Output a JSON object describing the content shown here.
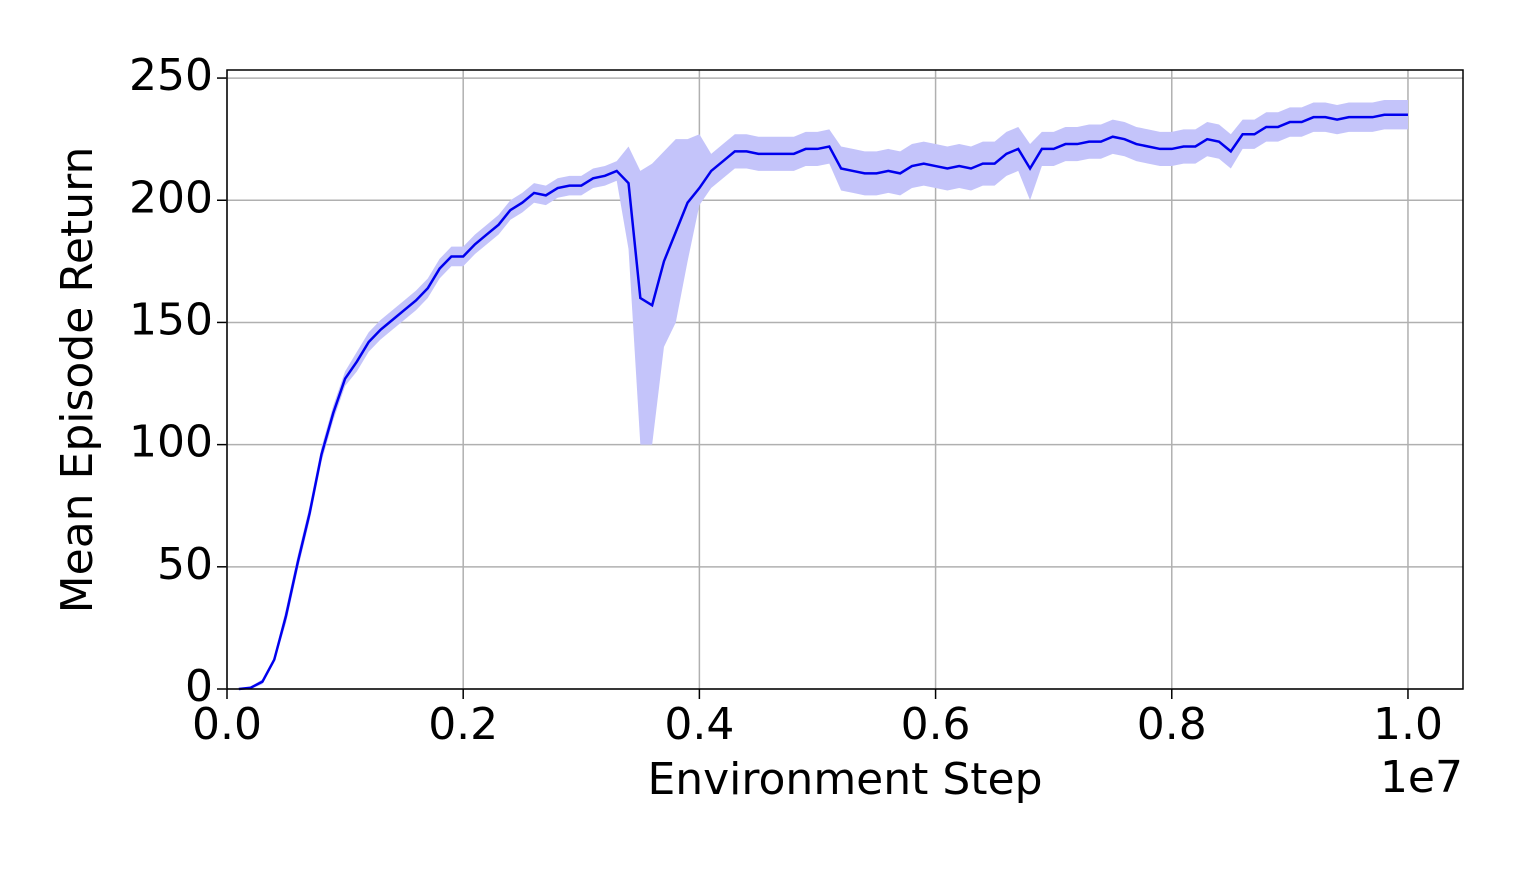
{
  "chart_data": {
    "type": "line",
    "xlabel": "Environment Step",
    "ylabel": "Mean Episode Return",
    "x_offset_label": "1e7",
    "xlim": [
      0,
      10466000
    ],
    "ylim": [
      0,
      253.3
    ],
    "xticks": [
      {
        "value": 0,
        "label": "0.0"
      },
      {
        "value": 2000000,
        "label": "0.2"
      },
      {
        "value": 4000000,
        "label": "0.4"
      },
      {
        "value": 6000000,
        "label": "0.6"
      },
      {
        "value": 8000000,
        "label": "0.8"
      },
      {
        "value": 10000000,
        "label": "1.0"
      }
    ],
    "yticks": [
      0,
      50,
      100,
      150,
      200,
      250
    ],
    "grid": true,
    "x": [
      100000,
      200000,
      300000,
      400000,
      500000,
      600000,
      700000,
      800000,
      900000,
      1000000,
      1100000,
      1200000,
      1300000,
      1400000,
      1500000,
      1600000,
      1700000,
      1800000,
      1900000,
      2000000,
      2100000,
      2200000,
      2300000,
      2400000,
      2500000,
      2600000,
      2700000,
      2800000,
      2900000,
      3000000,
      3100000,
      3200000,
      3300000,
      3400000,
      3500000,
      3600000,
      3700000,
      3800000,
      3900000,
      4000000,
      4100000,
      4200000,
      4300000,
      4400000,
      4500000,
      4600000,
      4700000,
      4800000,
      4900000,
      5000000,
      5100000,
      5200000,
      5300000,
      5400000,
      5500000,
      5600000,
      5700000,
      5800000,
      5900000,
      6000000,
      6100000,
      6200000,
      6300000,
      6400000,
      6500000,
      6600000,
      6700000,
      6800000,
      6900000,
      7000000,
      7100000,
      7200000,
      7300000,
      7400000,
      7500000,
      7600000,
      7700000,
      7800000,
      7900000,
      8000000,
      8100000,
      8200000,
      8300000,
      8400000,
      8500000,
      8600000,
      8700000,
      8800000,
      8900000,
      9000000,
      9100000,
      9200000,
      9300000,
      9400000,
      9500000,
      9600000,
      9700000,
      9800000,
      9900000,
      10000000
    ],
    "series": [
      {
        "color": "#0000ee",
        "band_color": "#c4c4fa",
        "values": [
          0,
          0.5,
          3,
          12,
          30,
          52,
          72,
          96,
          113,
          127,
          134,
          142,
          147,
          151,
          155,
          159,
          164,
          172,
          177,
          177,
          182,
          186,
          190,
          196,
          199,
          203,
          202,
          205,
          206,
          206,
          209,
          210,
          212,
          207,
          160,
          157,
          175,
          187,
          199,
          205,
          212,
          216,
          220,
          220,
          219,
          219,
          219,
          219,
          221,
          221,
          222,
          213,
          212,
          211,
          211,
          212,
          211,
          214,
          215,
          214,
          213,
          214,
          213,
          215,
          215,
          219,
          221,
          213,
          221,
          221,
          223,
          223,
          224,
          224,
          226,
          225,
          223,
          222,
          221,
          221,
          222,
          222,
          225,
          224,
          220,
          227,
          227,
          230,
          230,
          232,
          232,
          234,
          234,
          233,
          234,
          234,
          234,
          235,
          235,
          235
        ],
        "lower": [
          0,
          0,
          2,
          11,
          27,
          49,
          69,
          93,
          110,
          124,
          130,
          138,
          143,
          147,
          151,
          155,
          160,
          168,
          173,
          173,
          178,
          182,
          186,
          192,
          195,
          199,
          198,
          201,
          202,
          202,
          205,
          206,
          208,
          180,
          100,
          100,
          140,
          150,
          175,
          198,
          205,
          209,
          213,
          213,
          212,
          212,
          212,
          212,
          214,
          214,
          215,
          204,
          203,
          202,
          202,
          203,
          202,
          205,
          206,
          205,
          204,
          205,
          204,
          206,
          206,
          210,
          212,
          200,
          214,
          214,
          216,
          216,
          217,
          217,
          219,
          218,
          216,
          215,
          214,
          214,
          215,
          215,
          218,
          217,
          213,
          221,
          221,
          224,
          224,
          226,
          226,
          228,
          228,
          227,
          228,
          228,
          228,
          229,
          229,
          229
        ],
        "upper": [
          0,
          1,
          4,
          13,
          33,
          55,
          75,
          99,
          116,
          130,
          138,
          146,
          151,
          155,
          159,
          163,
          168,
          176,
          181,
          181,
          186,
          190,
          194,
          200,
          203,
          207,
          206,
          209,
          210,
          210,
          213,
          214,
          216,
          222,
          212,
          215,
          220,
          225,
          225,
          227,
          219,
          223,
          227,
          227,
          226,
          226,
          226,
          226,
          228,
          228,
          229,
          222,
          221,
          220,
          220,
          221,
          220,
          223,
          224,
          223,
          222,
          223,
          222,
          224,
          224,
          228,
          230,
          223,
          228,
          228,
          230,
          230,
          231,
          231,
          233,
          232,
          230,
          229,
          228,
          228,
          229,
          229,
          232,
          231,
          227,
          233,
          233,
          236,
          236,
          238,
          238,
          240,
          240,
          239,
          240,
          240,
          240,
          241,
          241,
          241
        ]
      }
    ]
  }
}
